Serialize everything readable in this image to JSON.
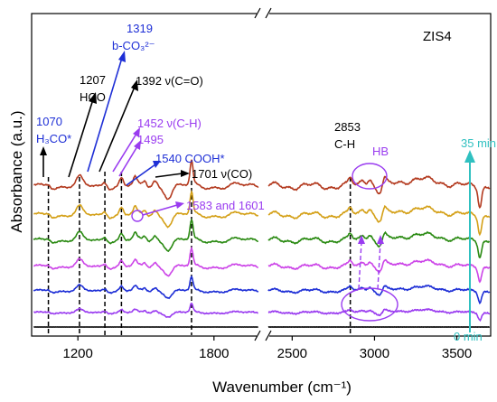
{
  "chart_data": {
    "type": "line",
    "title": "",
    "sample_label": "ZIS4",
    "xlabel": "Wavenumber (cm⁻¹)",
    "ylabel": "Absorbance (a.u.)",
    "axis_break": true,
    "xlim_left": [
      1000,
      2000
    ],
    "xlim_right": [
      2350,
      3700
    ],
    "xticks": [
      {
        "value": 1200,
        "label": "1200"
      },
      {
        "value": 1800,
        "label": "1800"
      },
      {
        "value": 2500,
        "label": "2500"
      },
      {
        "value": 3000,
        "label": "3000"
      },
      {
        "value": 3500,
        "label": "3500"
      }
    ],
    "time_arrow": {
      "start": "0 min",
      "end": "35 min",
      "color": "#30c0c0"
    },
    "series": [
      {
        "time_order": 0,
        "color": "#000000",
        "amplitude": 0.0
      },
      {
        "time_order": 1,
        "color": "#9a3cf0",
        "amplitude": 0.35
      },
      {
        "time_order": 2,
        "color": "#1e2fd6",
        "amplitude": 0.55
      },
      {
        "time_order": 3,
        "color": "#cc44e8",
        "amplitude": 0.7
      },
      {
        "time_order": 4,
        "color": "#2a8a12",
        "amplitude": 0.8
      },
      {
        "time_order": 5,
        "color": "#d4a017",
        "amplitude": 0.9
      },
      {
        "time_order": 6,
        "color": "#b33a1f",
        "amplitude": 1.0
      }
    ],
    "vertical_markers": [
      {
        "x": 1070
      },
      {
        "x": 1207
      },
      {
        "x": 1319
      },
      {
        "x": 1392
      },
      {
        "x": 1701
      },
      {
        "x": 2853
      }
    ],
    "annotations": [
      {
        "line1": "1070",
        "line2": "H₃CO*",
        "color": "#1e2fd6"
      },
      {
        "line1": "1207",
        "line2": "HCO",
        "color": "#000000"
      },
      {
        "line1": "1319",
        "line2": "b-CO₃²⁻",
        "color": "#1e2fd6"
      },
      {
        "text": "1392 ν(C=O)",
        "color": "#000000"
      },
      {
        "text": "1452 ν(C-H)",
        "color": "#9a3cf0"
      },
      {
        "text": "1495",
        "color": "#9a3cf0"
      },
      {
        "text": "1540 COOH*",
        "color": "#1e2fd6"
      },
      {
        "text": "1701 ν(CO)",
        "color": "#000000"
      },
      {
        "text": "1583 and 1601",
        "color": "#9a3cf0"
      },
      {
        "line1": "2853",
        "line2": "C-H",
        "color": "#000000"
      },
      {
        "text": "HB",
        "color": "#9a3cf0"
      }
    ]
  }
}
